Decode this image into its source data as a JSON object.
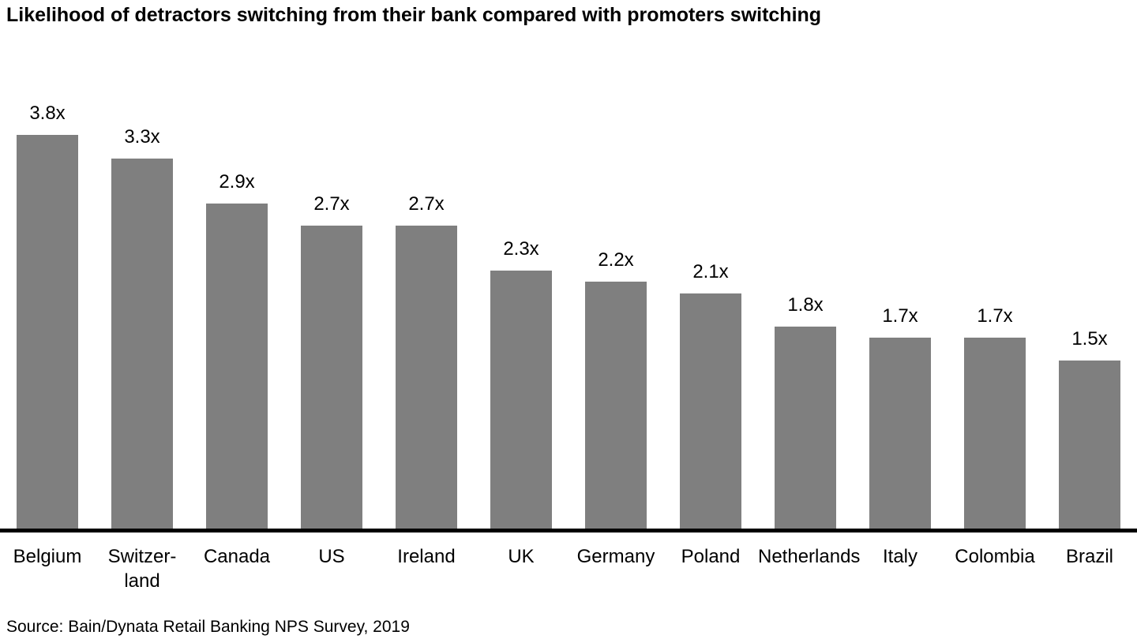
{
  "title": "Likelihood of detractors switching from their bank compared with promoters switching",
  "source_note": "Source: Bain/Dynata Retail Banking NPS Survey, 2019",
  "colors": {
    "bar": "#7f7f7f",
    "axis": "#000000",
    "text": "#000000",
    "background": "#ffffff"
  },
  "chart_data": {
    "type": "bar",
    "title": "Likelihood of detractors switching from their bank compared with promoters switching",
    "categories": [
      "Belgium",
      "Switzerland",
      "Canada",
      "US",
      "Ireland",
      "UK",
      "Germany",
      "Poland",
      "Netherlands",
      "Italy",
      "Colombia",
      "Brazil"
    ],
    "category_display": [
      [
        "Belgium"
      ],
      [
        "Switzer-",
        "land"
      ],
      [
        "Canada"
      ],
      [
        "US"
      ],
      [
        "Ireland"
      ],
      [
        "UK"
      ],
      [
        "Germany"
      ],
      [
        "Poland"
      ],
      [
        "Netherlands"
      ],
      [
        "Italy"
      ],
      [
        "Colombia"
      ],
      [
        "Brazil"
      ]
    ],
    "values": [
      3.8,
      3.3,
      2.9,
      2.7,
      2.7,
      2.3,
      2.2,
      2.1,
      1.8,
      1.7,
      1.7,
      1.5
    ],
    "value_labels": [
      "3.8x",
      "3.3x",
      "2.9x",
      "2.7x",
      "2.7x",
      "2.3x",
      "2.2x",
      "2.1x",
      "1.8x",
      "1.7x",
      "1.7x",
      "1.5x"
    ],
    "xlabel": "",
    "ylabel": "",
    "ylim": [
      0,
      3.8
    ],
    "grid": false,
    "legend": null,
    "bar_color": "#7f7f7f",
    "source": "Source: Bain/Dynata Retail Banking NPS Survey, 2019"
  }
}
